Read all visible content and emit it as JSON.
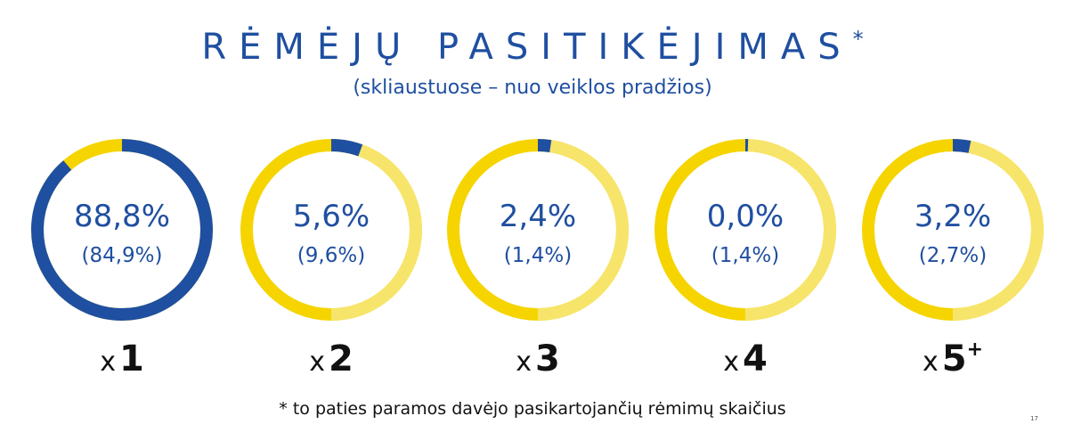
{
  "header": {
    "title": "RĖMĖJŲ PASITIKĖJIMAS",
    "title_mark": "*",
    "subtitle": "(skliaustuose – nuo veiklos pradžios)"
  },
  "colors": {
    "blue": "#1f4fa0",
    "yellow": "#f5d400",
    "yellow_light": "#f7e46a"
  },
  "chart_data": {
    "type": "donut",
    "categories": [
      "x 1",
      "x 2",
      "x 3",
      "x 4",
      "x 5+"
    ],
    "series": [
      {
        "name": "",
        "values": [
          88.8,
          5.6,
          2.4,
          0.0,
          3.2
        ]
      },
      {
        "name": "(skliaustuose – nuo veiklos pradžios)",
        "values": [
          84.9,
          9.6,
          1.4,
          1.4,
          2.7
        ]
      }
    ],
    "value_labels": [
      "88,8%",
      "5,6%",
      "2,4%",
      "0,0%",
      "3,2%"
    ],
    "secondary_labels": [
      "(84,9%)",
      "(9,6%)",
      "(1,4%)",
      "(1,4%)",
      "(2,7%)"
    ],
    "multipliers": [
      {
        "prefix": "x",
        "number": "1",
        "suffix": ""
      },
      {
        "prefix": "x",
        "number": "2",
        "suffix": ""
      },
      {
        "prefix": "x",
        "number": "3",
        "suffix": ""
      },
      {
        "prefix": "x",
        "number": "4",
        "suffix": ""
      },
      {
        "prefix": "x",
        "number": "5",
        "suffix": "+"
      }
    ]
  },
  "footnote": "* to paties paramos davėjo pasikartojančių rėmimų skaičius",
  "page_number": "17"
}
